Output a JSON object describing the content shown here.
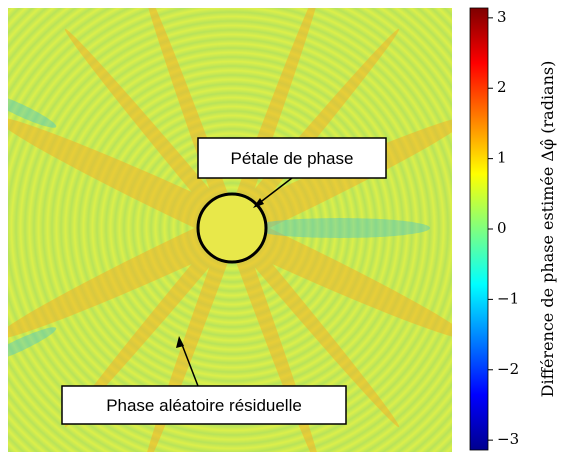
{
  "chart_data": {
    "type": "image",
    "colorbar_label": "Différence de phase estimée Δφ̂ (radians)",
    "clim": [
      -3.14,
      3.14
    ],
    "cticks": [
      {
        "value": -3,
        "label": "−3"
      },
      {
        "value": -2,
        "label": "−2"
      },
      {
        "value": -1,
        "label": "−1"
      },
      0,
      1,
      2,
      3
    ],
    "annotations": [
      "Pétale de phase",
      "Phase aléatoire résiduelle"
    ]
  }
}
